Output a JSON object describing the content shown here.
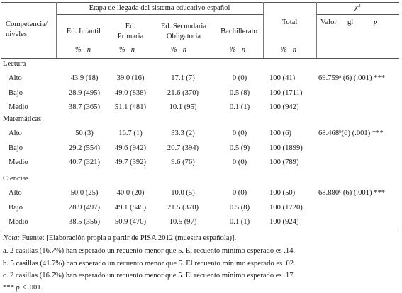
{
  "header": {
    "stage_label": "Etapa de llegada del sistema educativo español",
    "competencia_label": "Competencia/\nniveles",
    "chi_label": "χ",
    "chi_exp": "2",
    "columns": [
      "Ed. Infantil",
      "Ed.\nPrimaria",
      "Ed. Secundaria\nObligatoria",
      "Bachillerato"
    ],
    "total_label": "Total",
    "valor_label": "Valor",
    "gl_label": "gl",
    "p_label": "p",
    "unit_label": "%   n"
  },
  "sections": [
    {
      "name": "Lectura",
      "rows": [
        {
          "level": "Alto",
          "values": [
            "43.9 (18)",
            "39.0 (16)",
            "17.1 (7)",
            "0 (0)"
          ],
          "total": "100 (41)",
          "chi_val": "69.759",
          "chi_sup": "a",
          "chi_rest": " (6) (.001) ***"
        },
        {
          "level": "Bajo",
          "values": [
            "28.9 (495)",
            "49.0 (838)",
            "21.6 (370)",
            "0.5 (8)"
          ],
          "total": "100 (1711)"
        },
        {
          "level": "Medio",
          "values": [
            "38.7 (365)",
            "51.1 (481)",
            "10.1 (95)",
            "0.1 (1)"
          ],
          "total": "100 (942)"
        }
      ]
    },
    {
      "name": "Matemáticas",
      "rows": [
        {
          "level": "Alto",
          "values": [
            "50 (3)",
            "16.7 (1)",
            "33.3 (2)",
            "0 (0)"
          ],
          "total": "100 (6)",
          "chi_val": "68.468",
          "chi_sup": "b",
          "chi_rest": "(6) (.001) ***"
        },
        {
          "level": "Bajo",
          "values": [
            "29.2 (554)",
            "49.6 (942)",
            "20.7 (394)",
            "0.5 (9)"
          ],
          "total": "100 (1899)"
        },
        {
          "level": "Medio",
          "values": [
            "40.7 (321)",
            "49.7 (392)",
            "9.6 (76)",
            "0 (0)"
          ],
          "total": "100 (789)"
        }
      ]
    },
    {
      "name": "Ciencias",
      "rows": [
        {
          "level": "Alto",
          "values": [
            "50.0 (25)",
            "40.0 (20)",
            "10.0 (5)",
            "0 (0)"
          ],
          "total": "100 (50)",
          "chi_val": "68.880",
          "chi_sup": "c",
          "chi_rest": " (6) (.001) ***"
        },
        {
          "level": "Bajo",
          "values": [
            "28.9 (497)",
            "49.1 (845)",
            "21.5 (370)",
            "0.5 (8)"
          ],
          "total": "100 (1720)"
        },
        {
          "level": "Medio",
          "values": [
            "38.5 (356)",
            "50.9 (470)",
            "10.5 (97)",
            "0.1 (1)"
          ],
          "total": "100 (924)"
        }
      ]
    }
  ],
  "notes": {
    "nota_label": "Nota:",
    "source": " Fuente: [Elaboración propia a partir de PISA 2012 (muestra española)].",
    "a": "a. 2 casillas (16.7%) han esperado un recuento menor que 5. El recuento mínimo esperado es .14.",
    "b": "b. 5 casillas (41.7%) han esperado un recuento menor que 5. El recuento mínimo esperado es .02.",
    "c": "c. 2 casillas (16.7%) han esperado un recuento menor que 5. El recuento mínimo esperado es .17.",
    "sig_prefix": "*** ",
    "sig_p": "p",
    "sig_rest": " < .001."
  }
}
